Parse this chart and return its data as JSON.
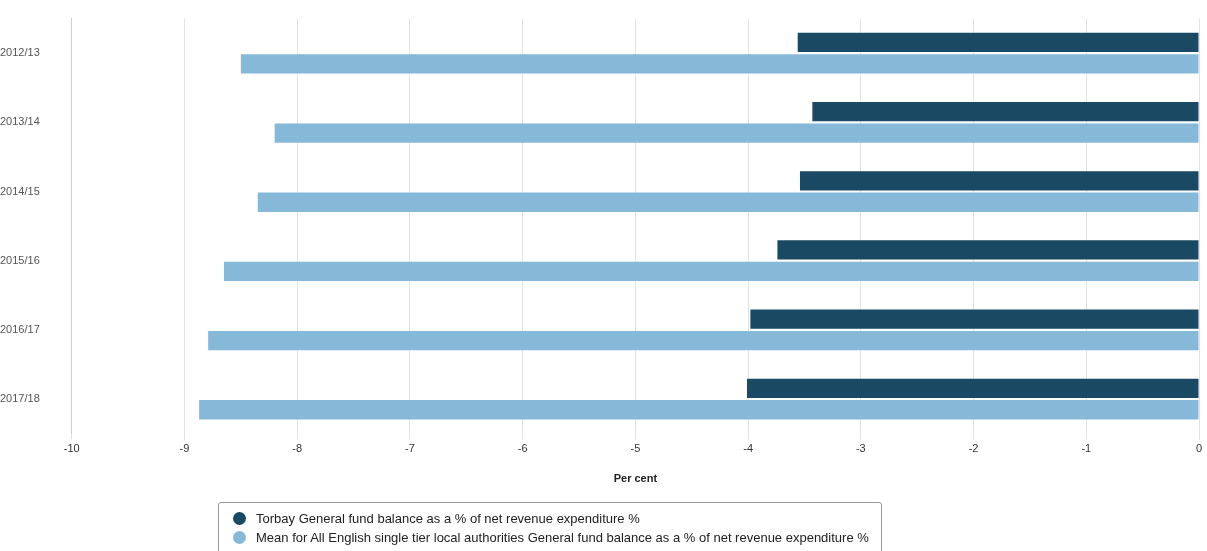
{
  "chart_data": {
    "type": "bar",
    "orientation": "horizontal",
    "xlabel": "Per cent",
    "categories": [
      "2012/13",
      "2013/14",
      "2014/15",
      "2015/16",
      "2016/17",
      "2017/18"
    ],
    "series": [
      {
        "name": "Torbay General fund balance as a % of net revenue expenditure %",
        "color": "#1a4a63",
        "values": [
          -3.56,
          -3.43,
          -3.54,
          -3.74,
          -3.98,
          -4.01
        ]
      },
      {
        "name": "Mean for All English single tier local authorities General fund balance as a % of net revenue expenditure %",
        "color": "#86b8d8",
        "values": [
          -8.5,
          -8.2,
          -8.35,
          -8.65,
          -8.79,
          -8.87
        ]
      }
    ],
    "xlim": [
      -10,
      0
    ],
    "xticks": [
      -10,
      -9,
      -8,
      -7,
      -6,
      -5,
      -4,
      -3,
      -2,
      -1,
      0
    ],
    "grid": "x",
    "legend": "bottom"
  }
}
